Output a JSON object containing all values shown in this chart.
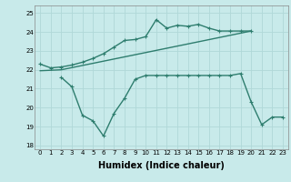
{
  "bg_color": "#c8eaea",
  "grid_color": "#b0d8d8",
  "line_color": "#2e7d6e",
  "linewidth": 1.0,
  "markersize": 3,
  "xlabel": "Humidex (Indice chaleur)",
  "xlabel_fontsize": 7,
  "tick_fontsize": 5,
  "ylim": [
    17.8,
    25.4
  ],
  "xlim": [
    -0.5,
    23.5
  ],
  "yticks": [
    18,
    19,
    20,
    21,
    22,
    23,
    24,
    25
  ],
  "xticks": [
    0,
    1,
    2,
    3,
    4,
    5,
    6,
    7,
    8,
    9,
    10,
    11,
    12,
    13,
    14,
    15,
    16,
    17,
    18,
    19,
    20,
    21,
    22,
    23
  ],
  "series1_x": [
    0,
    1,
    2,
    3,
    4,
    5,
    6,
    7,
    8,
    9,
    10,
    11,
    12,
    13,
    14,
    15,
    16,
    17,
    18,
    19,
    20
  ],
  "series1_y": [
    22.3,
    22.1,
    22.15,
    22.25,
    22.4,
    22.6,
    22.85,
    23.2,
    23.55,
    23.6,
    23.75,
    24.65,
    24.2,
    24.35,
    24.3,
    24.4,
    24.2,
    24.05,
    24.05,
    24.05,
    24.05
  ],
  "series2_x": [
    2,
    3,
    4,
    5,
    6,
    7,
    8,
    9,
    10,
    11,
    12,
    13,
    14,
    15,
    16,
    17,
    18,
    19,
    20,
    21,
    22,
    23
  ],
  "series2_y": [
    21.6,
    21.1,
    19.6,
    19.3,
    18.5,
    19.7,
    20.5,
    21.5,
    21.7,
    21.7,
    21.7,
    21.7,
    21.7,
    21.7,
    21.7,
    21.7,
    21.7,
    21.8,
    20.3,
    19.1,
    19.5,
    19.5
  ],
  "series3_x": [
    0,
    2,
    20
  ],
  "series3_y": [
    21.95,
    22.0,
    24.05
  ]
}
